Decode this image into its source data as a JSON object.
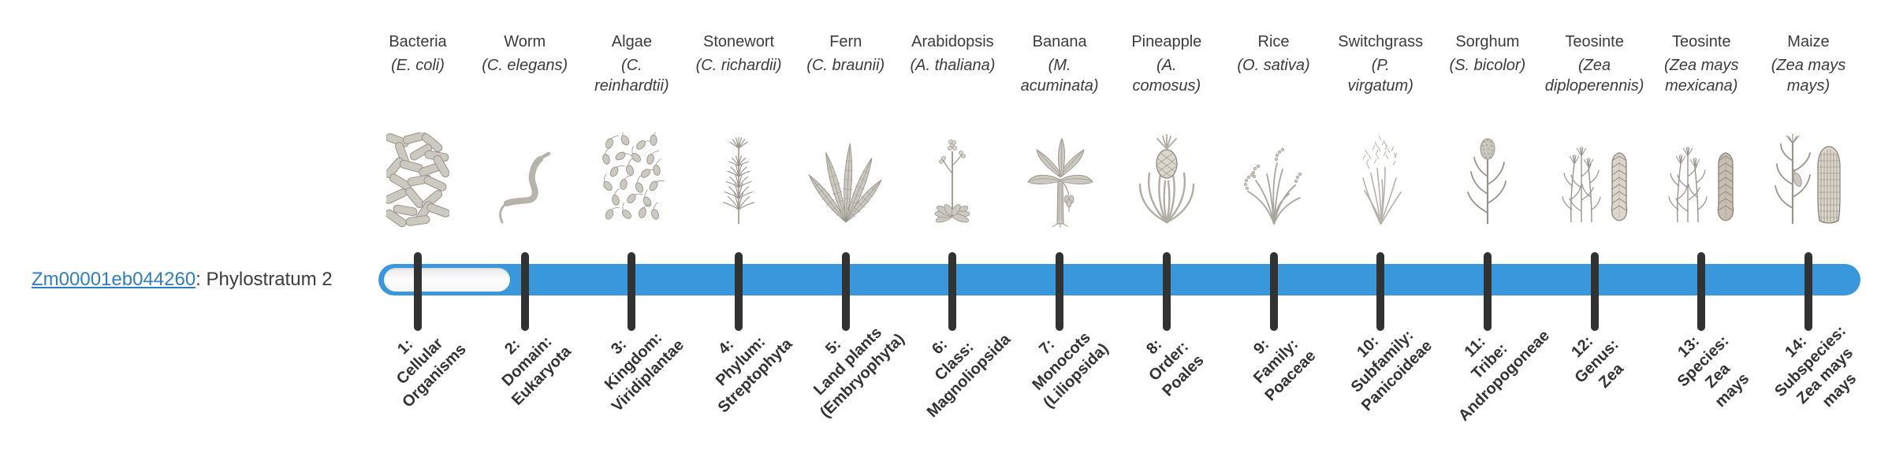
{
  "gene": {
    "id": "Zm00001eb044260",
    "annotation": ": Phylostratum 2",
    "phylostratum": 2
  },
  "colors": {
    "bar_blue": "#3898db",
    "tick_dark": "#323232",
    "link_blue": "#2e7ec5",
    "label_text": "#3c3c3c",
    "stratum_text": "#333333",
    "icon_gray": "#98948c"
  },
  "chart_data": {
    "type": "timeline",
    "gene_id": "Zm00001eb044260",
    "gene_phylostratum": 2,
    "total_strata": 14,
    "strata": [
      {
        "num": 1,
        "taxon": "Cellular Organisms",
        "organism": "Bacteria",
        "species": "E. coli",
        "species_display": "(E. coli)",
        "stratum_display": "1:\nCellular\nOrganisms",
        "icon": "bacteria-icon"
      },
      {
        "num": 2,
        "taxon": "Domain: Eukaryota",
        "organism": "Worm",
        "species": "C. elegans",
        "species_display": "(C. elegans)",
        "stratum_display": "2:\nDomain:\nEukaryota",
        "icon": "worm-icon"
      },
      {
        "num": 3,
        "taxon": "Kingdom: Viridiplantae",
        "organism": "Algae",
        "species": "C. reinhardtii",
        "species_display": "(C.\nreinhardtii)",
        "stratum_display": "3:\nKingdom:\nViridiplantae",
        "icon": "algae-icon"
      },
      {
        "num": 4,
        "taxon": "Phylum: Streptophyta",
        "organism": "Stonewort",
        "species": "C. richardii",
        "species_display": "(C. richardii)",
        "stratum_display": "4:\nPhylum:\nStreptophyta",
        "icon": "stonewort-icon"
      },
      {
        "num": 5,
        "taxon": "Land plants (Embryophyta)",
        "organism": "Fern",
        "species": "C. braunii",
        "species_display": "(C. braunii)",
        "stratum_display": "5:\nLand plants\n(Embryophyta)",
        "icon": "fern-icon"
      },
      {
        "num": 6,
        "taxon": "Class: Magnoliopsida",
        "organism": "Arabidopsis",
        "species": "A. thaliana",
        "species_display": "(A. thaliana)",
        "stratum_display": "6:\nClass:\nMagnoliopsida",
        "icon": "arabidopsis-icon"
      },
      {
        "num": 7,
        "taxon": "Monocots (Liliopsida)",
        "organism": "Banana",
        "species": "M. acuminata",
        "species_display": "(M.\nacuminata)",
        "stratum_display": "7:\nMonocots\n(Liliopsida)",
        "icon": "banana-icon"
      },
      {
        "num": 8,
        "taxon": "Order: Poales",
        "organism": "Pineapple",
        "species": "A. comosus",
        "species_display": "(A.\ncomosus)",
        "stratum_display": "8:\nOrder:\nPoales",
        "icon": "pineapple-icon"
      },
      {
        "num": 9,
        "taxon": "Family: Poaceae",
        "organism": "Rice",
        "species": "O. sativa",
        "species_display": "(O. sativa)",
        "stratum_display": "9:\nFamily:\nPoaceae",
        "icon": "rice-icon"
      },
      {
        "num": 10,
        "taxon": "Subfamily: Panicoideae",
        "organism": "Switchgrass",
        "species": "P. virgatum",
        "species_display": "(P.\nvirgatum)",
        "stratum_display": "10:\nSubfamily:\nPanicoideae",
        "icon": "switchgrass-icon"
      },
      {
        "num": 11,
        "taxon": "Tribe: Andropogoneae",
        "organism": "Sorghum",
        "species": "S. bicolor",
        "species_display": "(S. bicolor)",
        "stratum_display": "11:\nTribe:\nAndropogoneae",
        "icon": "sorghum-icon"
      },
      {
        "num": 12,
        "taxon": "Genus: Zea",
        "organism": "Teosinte",
        "species": "Zea diploperennis",
        "species_display": "(Zea\ndiploperennis)",
        "stratum_display": "12:\nGenus:\nZea",
        "icon": "teosinte-diploperennis-icon"
      },
      {
        "num": 13,
        "taxon": "Species: Zea mays",
        "organism": "Teosinte",
        "species": "Zea mays mexicana",
        "species_display": "(Zea mays\nmexicana)",
        "stratum_display": "13:\nSpecies:\nZea\nmays",
        "icon": "teosinte-mexicana-icon"
      },
      {
        "num": 14,
        "taxon": "Subspecies: Zea mays mays",
        "organism": "Maize",
        "species": "Zea mays mays",
        "species_display": "(Zea mays\nmays)",
        "stratum_display": "14:\nSubspecies:\nZea mays\nmays",
        "icon": "maize-icon"
      }
    ]
  }
}
